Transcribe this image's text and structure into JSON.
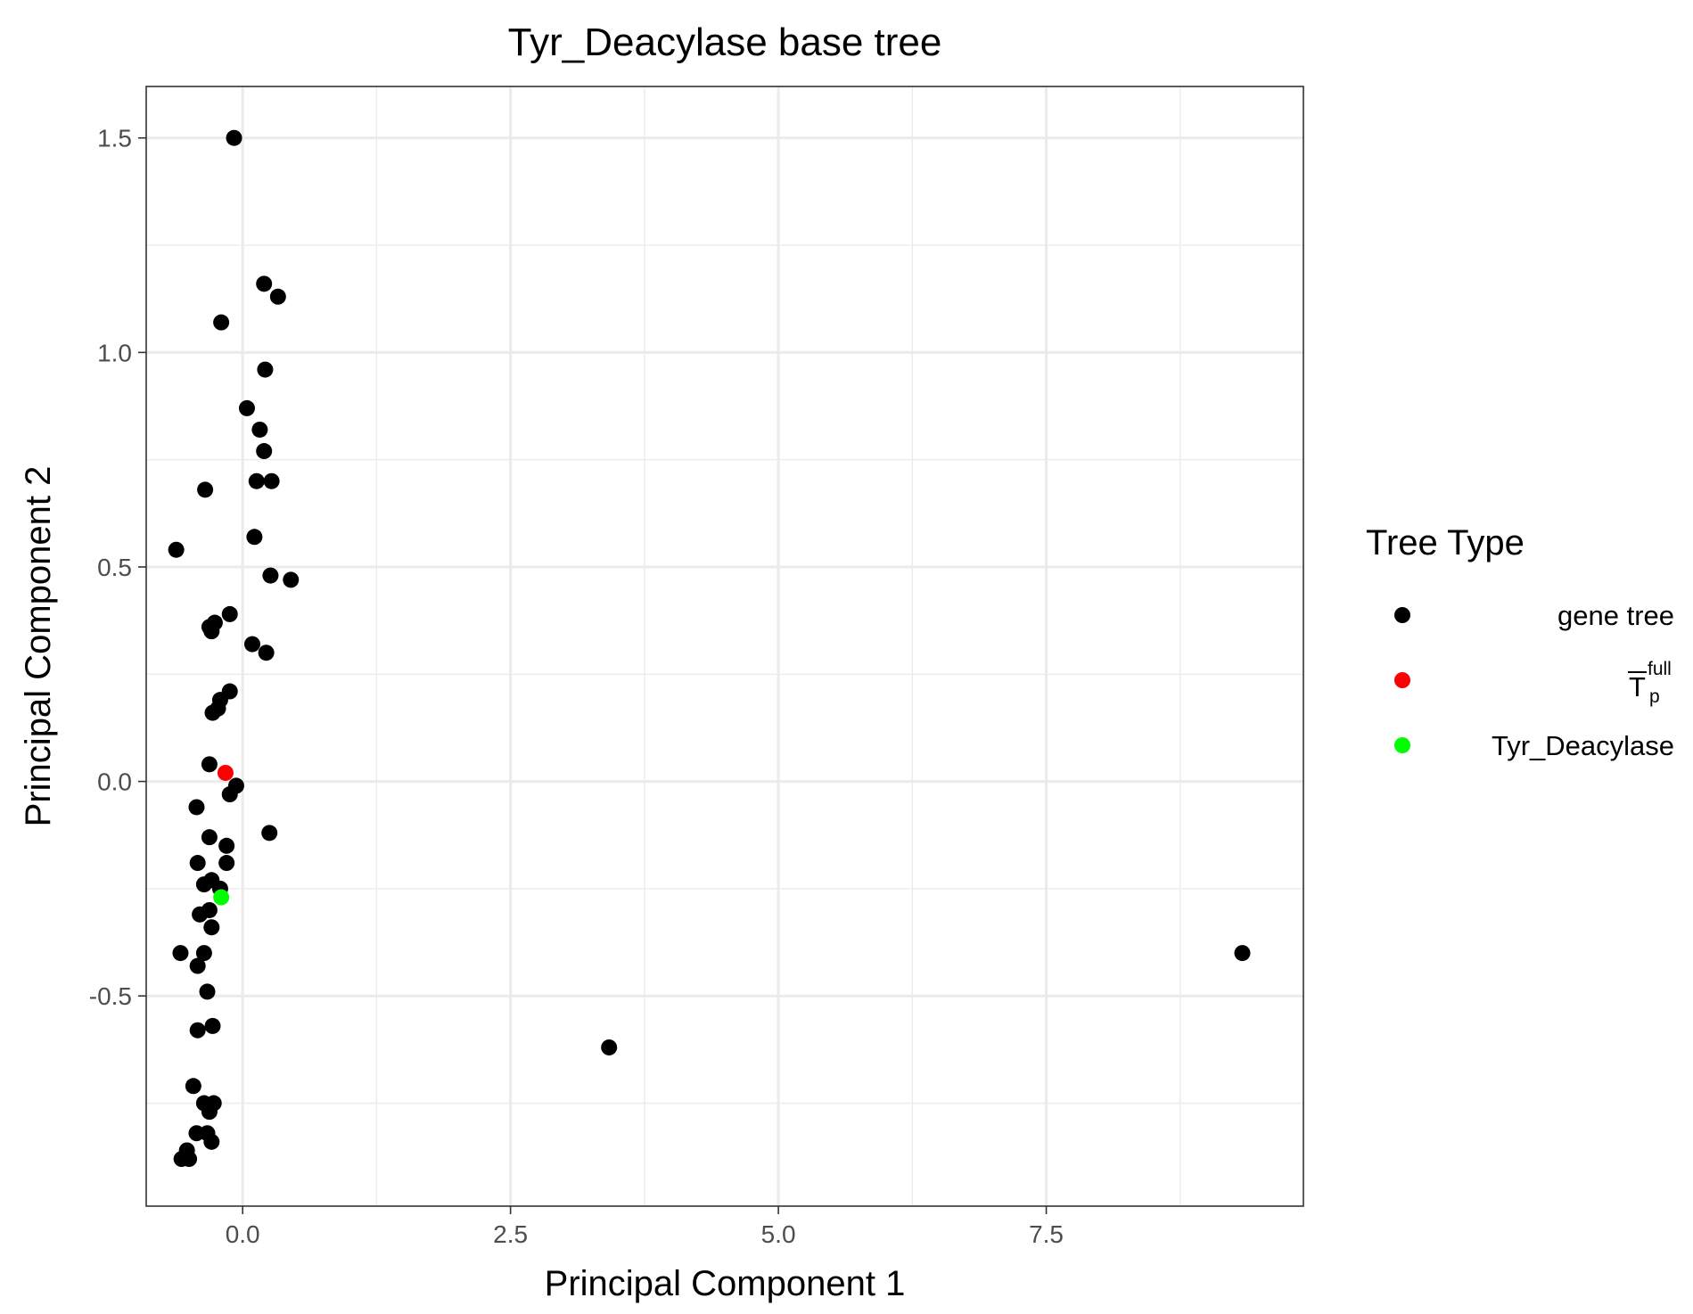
{
  "chart_data": {
    "type": "scatter",
    "title": "Tyr_Deacylase base tree",
    "xlabel": "Principal Component 1",
    "ylabel": "Principal Component 2",
    "xlim": [
      -0.9,
      9.9
    ],
    "ylim": [
      -0.99,
      1.62
    ],
    "x_ticks": [
      0.0,
      2.5,
      5.0,
      7.5
    ],
    "x_tick_labels": [
      "0.0",
      "2.5",
      "5.0",
      "7.5"
    ],
    "y_ticks": [
      -0.5,
      0.0,
      0.5,
      1.0,
      1.5
    ],
    "y_tick_labels": [
      "-0.5",
      "0.0",
      "0.5",
      "1.0",
      "1.5"
    ],
    "grid": true,
    "legend_position": "right",
    "legend_title": "Tree Type",
    "series": [
      {
        "name": "gene tree",
        "color": "#000000",
        "points": [
          [
            -0.08,
            1.5
          ],
          [
            0.2,
            1.16
          ],
          [
            0.33,
            1.13
          ],
          [
            -0.2,
            1.07
          ],
          [
            0.21,
            0.96
          ],
          [
            0.04,
            0.87
          ],
          [
            0.16,
            0.82
          ],
          [
            0.2,
            0.77
          ],
          [
            0.13,
            0.7
          ],
          [
            0.27,
            0.7
          ],
          [
            -0.35,
            0.68
          ],
          [
            -0.62,
            0.54
          ],
          [
            0.11,
            0.57
          ],
          [
            0.26,
            0.48
          ],
          [
            0.45,
            0.47
          ],
          [
            -0.12,
            0.39
          ],
          [
            -0.26,
            0.37
          ],
          [
            -0.31,
            0.36
          ],
          [
            -0.29,
            0.35
          ],
          [
            0.09,
            0.32
          ],
          [
            0.22,
            0.3
          ],
          [
            -0.12,
            0.21
          ],
          [
            -0.21,
            0.19
          ],
          [
            -0.23,
            0.17
          ],
          [
            -0.28,
            0.16
          ],
          [
            -0.31,
            0.04
          ],
          [
            -0.06,
            -0.01
          ],
          [
            -0.12,
            -0.03
          ],
          [
            -0.43,
            -0.06
          ],
          [
            -0.31,
            -0.13
          ],
          [
            0.25,
            -0.12
          ],
          [
            -0.15,
            -0.15
          ],
          [
            -0.15,
            -0.19
          ],
          [
            -0.42,
            -0.19
          ],
          [
            -0.29,
            -0.23
          ],
          [
            -0.36,
            -0.24
          ],
          [
            -0.21,
            -0.25
          ],
          [
            -0.31,
            -0.3
          ],
          [
            -0.4,
            -0.31
          ],
          [
            -0.29,
            -0.34
          ],
          [
            -0.58,
            -0.4
          ],
          [
            -0.36,
            -0.4
          ],
          [
            -0.42,
            -0.43
          ],
          [
            -0.33,
            -0.49
          ],
          [
            -0.28,
            -0.57
          ],
          [
            -0.42,
            -0.58
          ],
          [
            -0.46,
            -0.71
          ],
          [
            -0.36,
            -0.75
          ],
          [
            -0.27,
            -0.75
          ],
          [
            -0.31,
            -0.77
          ],
          [
            -0.43,
            -0.82
          ],
          [
            -0.33,
            -0.82
          ],
          [
            -0.29,
            -0.84
          ],
          [
            -0.52,
            -0.86
          ],
          [
            -0.5,
            -0.88
          ],
          [
            -0.57,
            -0.88
          ],
          [
            3.42,
            -0.62
          ],
          [
            9.33,
            -0.4
          ]
        ]
      },
      {
        "name": "T̅p full",
        "color": "#ff0000",
        "points": [
          [
            -0.16,
            0.02
          ]
        ]
      },
      {
        "name": "Tyr_Deacylase",
        "color": "#00ff00",
        "points": [
          [
            -0.2,
            -0.27
          ]
        ]
      }
    ],
    "legend": [
      {
        "label": "gene tree",
        "color": "#000000",
        "kind": "plain"
      },
      {
        "label": "T",
        "sup": "full",
        "sub": "p",
        "color": "#ff0000",
        "kind": "math"
      },
      {
        "label": "Tyr_Deacylase",
        "color": "#00ff00",
        "kind": "plain"
      }
    ]
  }
}
